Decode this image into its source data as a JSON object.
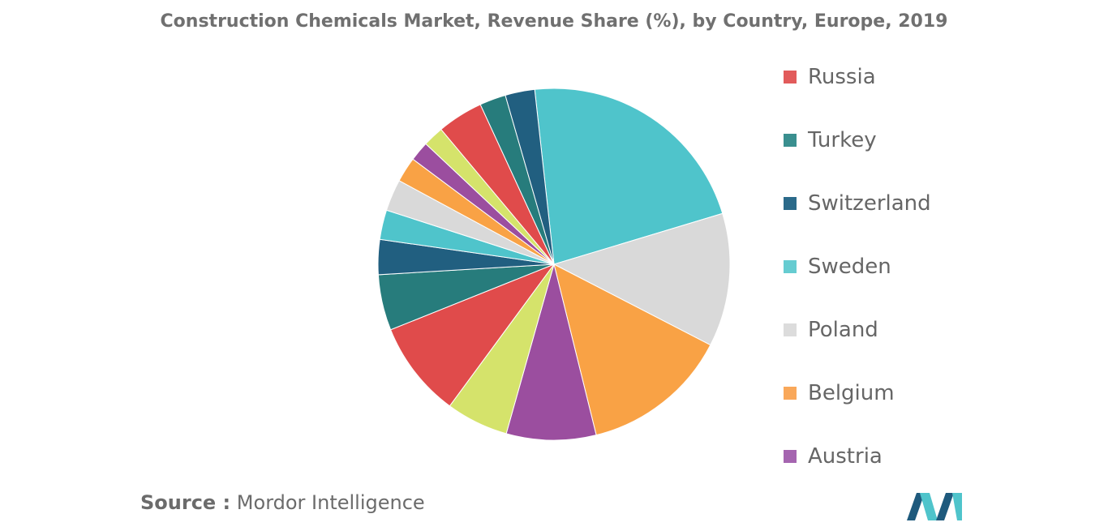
{
  "chart_data": {
    "type": "pie",
    "title": "Construction Chemicals Market, Revenue Share (%), by Country, Europe, 2019",
    "slices": [
      {
        "label": "Sweden",
        "value": 22.0,
        "color": "#4fc4cb"
      },
      {
        "label": "Poland",
        "value": 12.2,
        "color": "#d9d9d9"
      },
      {
        "label": "Belgium",
        "value": 13.5,
        "color": "#f9a245"
      },
      {
        "label": "Austria",
        "value": 8.2,
        "color": "#9b4e9f"
      },
      {
        "label": "",
        "value": 5.7,
        "color": "#d5e36b"
      },
      {
        "label": "Russia",
        "value": 8.8,
        "color": "#e04b4b"
      },
      {
        "label": "Turkey",
        "value": 5.1,
        "color": "#277c7c"
      },
      {
        "label": "Switzerland",
        "value": 3.2,
        "color": "#215f80"
      },
      {
        "label": "",
        "value": 2.7,
        "color": "#4fc4cb"
      },
      {
        "label": "",
        "value": 2.9,
        "color": "#d9d9d9"
      },
      {
        "label": "",
        "value": 2.3,
        "color": "#f9a245"
      },
      {
        "label": "",
        "value": 1.8,
        "color": "#9b4e9f"
      },
      {
        "label": "",
        "value": 1.9,
        "color": "#d5e36b"
      },
      {
        "label": "",
        "value": 4.2,
        "color": "#e04b4b"
      },
      {
        "label": "",
        "value": 2.4,
        "color": "#277c7c"
      },
      {
        "label": "",
        "value": 2.7,
        "color": "#215f80"
      }
    ],
    "legend": [
      {
        "label": "Russia",
        "color": "#e25b5b"
      },
      {
        "label": "Turkey",
        "color": "#3a8f8f"
      },
      {
        "label": "Switzerland",
        "color": "#2b6a8a"
      },
      {
        "label": "Sweden",
        "color": "#66ccd1"
      },
      {
        "label": "Poland",
        "color": "#dcdcdc"
      },
      {
        "label": "Belgium",
        "color": "#f9a85a"
      },
      {
        "label": "Austria",
        "color": "#a565b0"
      }
    ],
    "legend_position": "right"
  },
  "source": {
    "label": "Source :",
    "text": "Mordor Intelligence"
  },
  "logo": {
    "icon": "mordor-intelligence-logo",
    "colors": [
      "#1e5a7d",
      "#4fc4cb"
    ]
  }
}
